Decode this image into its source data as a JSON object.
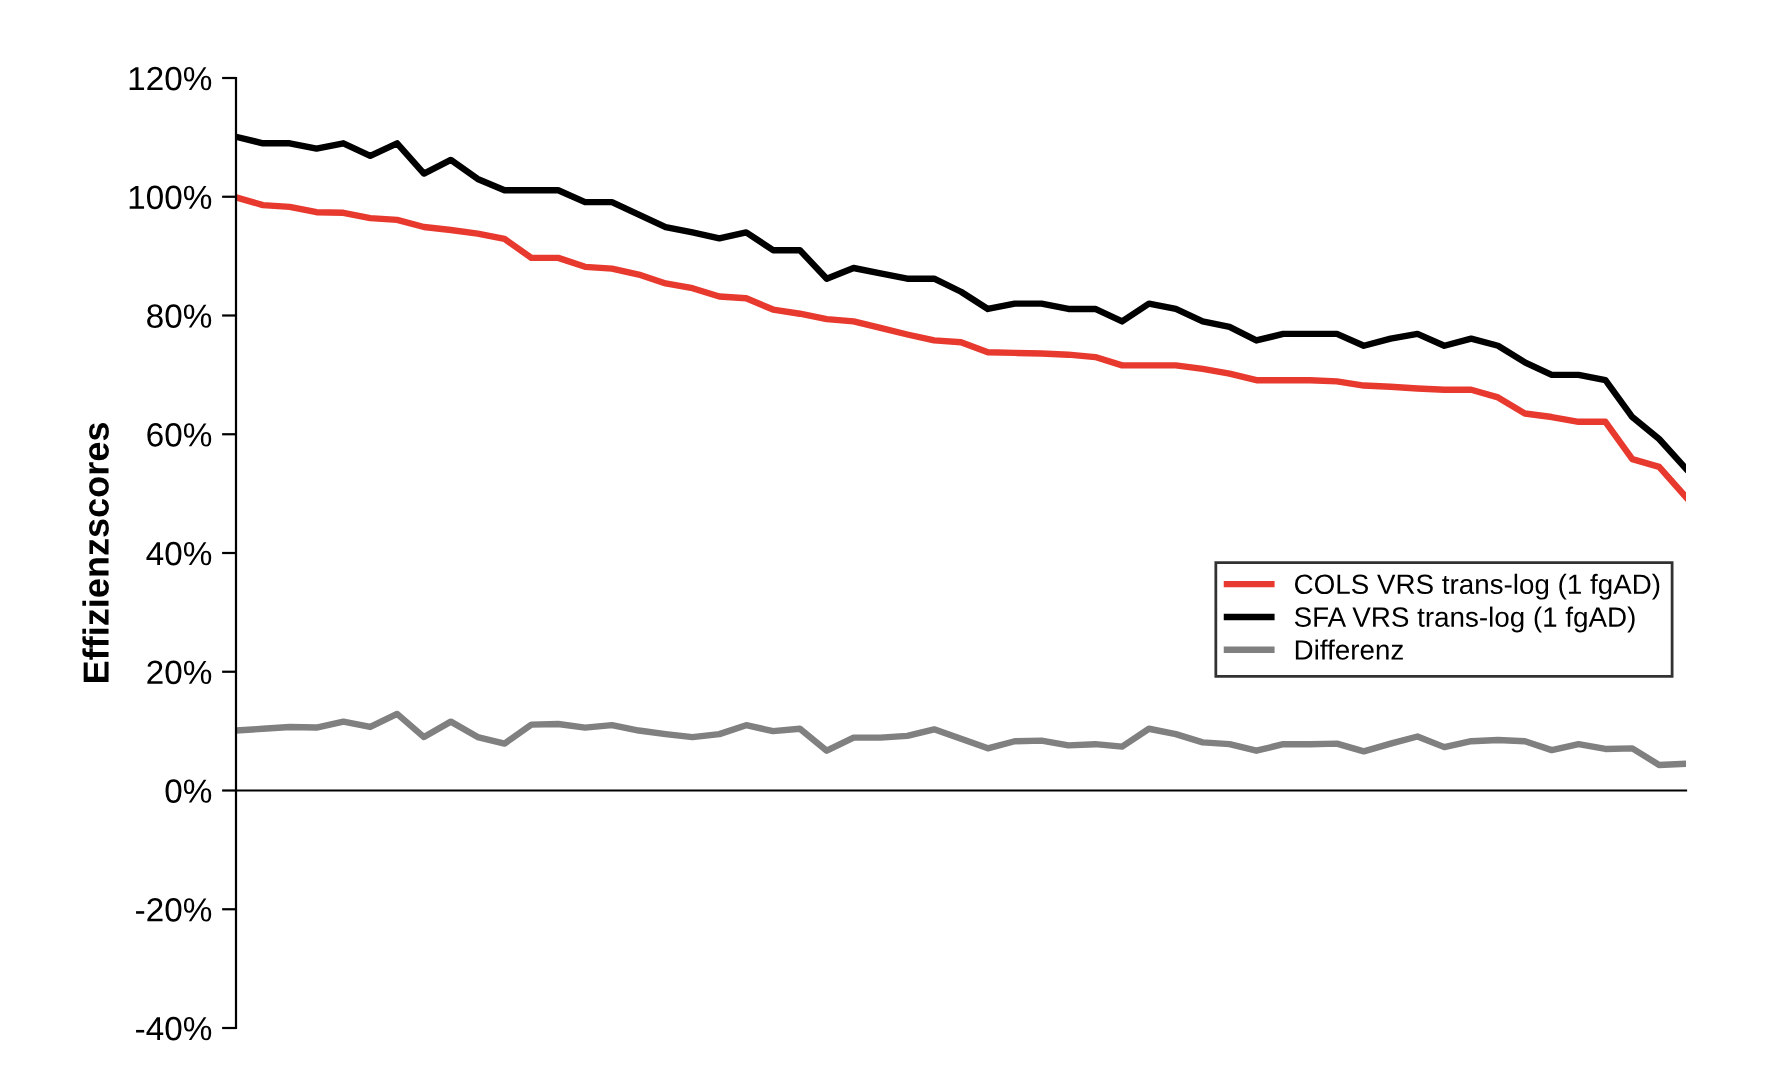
{
  "chart_data": {
    "type": "line",
    "ylabel": "Effizienzscores",
    "categories": [
      null,
      null,
      null,
      null,
      null,
      null,
      null,
      null,
      null,
      null,
      null,
      null,
      null,
      null,
      null,
      null,
      null,
      null,
      null,
      null,
      null,
      null,
      null,
      null,
      null,
      null,
      null,
      null,
      null,
      null,
      null,
      null,
      null,
      null,
      null,
      null,
      null,
      null,
      null,
      null,
      null,
      null,
      null,
      null,
      null,
      null,
      null,
      null,
      null,
      null,
      null,
      null,
      null,
      null,
      null
    ],
    "series": [
      {
        "name": "COLS VRS trans-log (1 fgAD)",
        "color": "#e8392f",
        "values": [
          99.9,
          98.6,
          98.3,
          97.4,
          97.3,
          96.4,
          96.1,
          94.9,
          94.4,
          93.8,
          92.9,
          89.7,
          89.7,
          88.2,
          87.9,
          86.9,
          85.4,
          84.6,
          83.2,
          82.9,
          81.0,
          80.3,
          79.4,
          79.0,
          77.9,
          76.8,
          75.8,
          75.5,
          73.8,
          73.7,
          73.6,
          73.4,
          73.0,
          71.6,
          71.6,
          71.6,
          71.0,
          70.2,
          69.1,
          69.1,
          69.1,
          68.9,
          68.2,
          68.0,
          67.7,
          67.5,
          67.5,
          66.2,
          63.5,
          62.9,
          62.1,
          62.1,
          55.8,
          54.5,
          49.4
        ]
      },
      {
        "name": "SFA VRS trans-log (1 fgAD)",
        "color": "#000000",
        "values": [
          110.1,
          109.0,
          109.0,
          108.1,
          109.0,
          106.9,
          109.0,
          103.9,
          106.2,
          103.0,
          101.1,
          101.1,
          101.1,
          99.1,
          99.1,
          97.0,
          94.9,
          94.0,
          93.0,
          94.0,
          91.0,
          91.0,
          86.2,
          88.0,
          87.1,
          86.2,
          86.2,
          84.0,
          81.1,
          82.0,
          82.0,
          81.1,
          81.1,
          79.0,
          82.0,
          81.1,
          79.0,
          78.1,
          75.8,
          76.9,
          76.9,
          76.9,
          74.9,
          76.1,
          76.9,
          74.9,
          76.1,
          74.9,
          72.1,
          70.0,
          70.0,
          69.1,
          62.9,
          59.2,
          54.2
        ]
      },
      {
        "name": "Differenz",
        "color": "#808080",
        "values": [
          10.1,
          10.4,
          10.7,
          10.6,
          11.6,
          10.7,
          12.9,
          9.0,
          11.6,
          9.0,
          7.9,
          11.1,
          11.2,
          10.6,
          11.0,
          10.1,
          9.5,
          9.0,
          9.5,
          11.0,
          10.0,
          10.4,
          6.7,
          8.9,
          8.9,
          9.2,
          10.3,
          8.7,
          7.1,
          8.3,
          8.4,
          7.6,
          7.8,
          7.4,
          10.4,
          9.5,
          8.1,
          7.8,
          6.7,
          7.8,
          7.8,
          7.9,
          6.6,
          7.9,
          9.1,
          7.3,
          8.3,
          8.5,
          8.3,
          6.8,
          7.8,
          7.0,
          7.1,
          4.3,
          4.5
        ]
      }
    ],
    "ylim": [
      -40,
      120
    ],
    "yticks": [
      {
        "value": -40,
        "label": "-40%"
      },
      {
        "value": -20,
        "label": "-20%"
      },
      {
        "value": 0,
        "label": "0%"
      },
      {
        "value": 20,
        "label": "20%"
      },
      {
        "value": 40,
        "label": "40%"
      },
      {
        "value": 60,
        "label": "60%"
      },
      {
        "value": 80,
        "label": "80%"
      },
      {
        "value": 100,
        "label": "100%"
      },
      {
        "value": 120,
        "label": "120%"
      }
    ],
    "legend": "right",
    "marker": "none",
    "line_style": "solid",
    "tick_labels": "y"
  }
}
